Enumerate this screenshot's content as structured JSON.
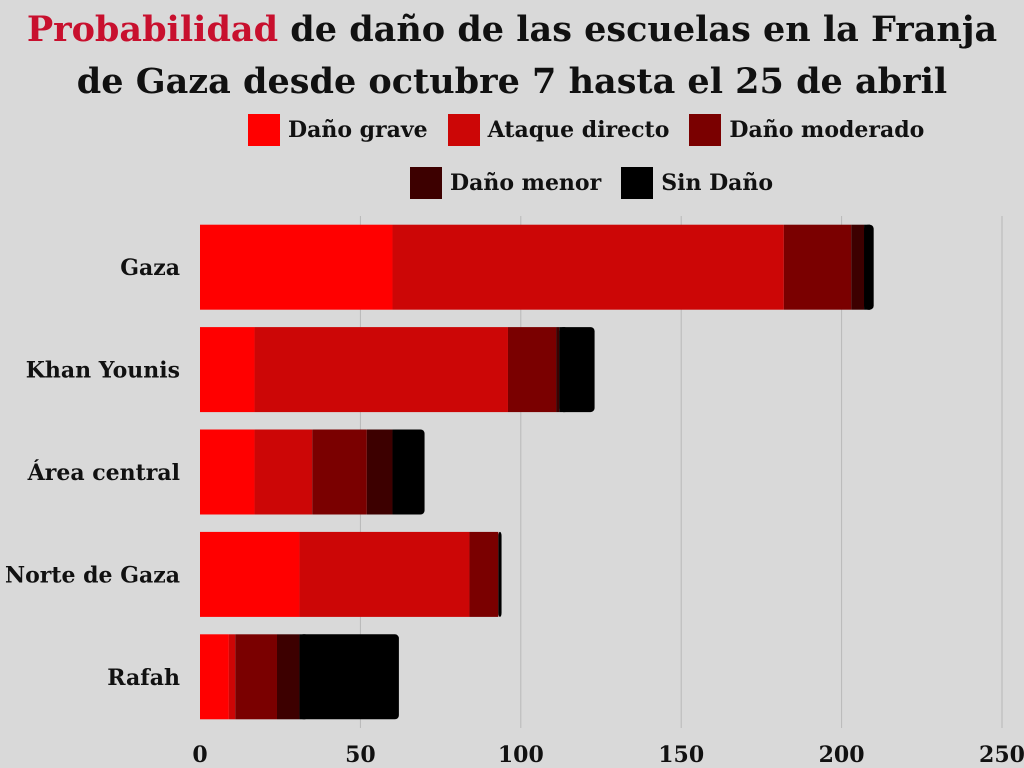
{
  "title": {
    "highlight": "Probabilidad",
    "rest_line1": " de daño de las escuelas en la Franja",
    "line2": "de Gaza desde octubre 7 hasta el 25 de abril"
  },
  "chart_data": {
    "type": "bar",
    "orientation": "horizontal",
    "stacked": true,
    "categories": [
      "Gaza",
      "Khan Younis",
      "Área central",
      "Norte de Gaza",
      "Rafah"
    ],
    "series": [
      {
        "name": "Daño grave",
        "color": "#ff0000",
        "values": [
          60,
          17,
          17,
          31,
          9
        ]
      },
      {
        "name": "Ataque directo",
        "color": "#cc0606",
        "values": [
          122,
          79,
          18,
          53,
          2
        ]
      },
      {
        "name": "Daño moderado",
        "color": "#7a0000",
        "values": [
          21,
          15,
          17,
          9,
          13
        ]
      },
      {
        "name": "Daño menor",
        "color": "#3d0000",
        "values": [
          4,
          1,
          8,
          0,
          7
        ]
      },
      {
        "name": "Sin Daño",
        "color": "#000000",
        "values": [
          3,
          11,
          10,
          1,
          31
        ]
      }
    ],
    "xlim": [
      0,
      250
    ],
    "xticks": [
      0,
      50,
      100,
      150,
      200,
      250
    ],
    "xlabel": "",
    "ylabel": "",
    "grid": "vertical",
    "legend": "top"
  }
}
